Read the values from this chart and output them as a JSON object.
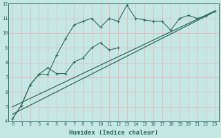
{
  "xlabel": "Humidex (Indice chaleur)",
  "x": [
    0,
    1,
    2,
    3,
    4,
    5,
    6,
    7,
    8,
    9,
    10,
    11,
    12,
    13,
    14,
    15,
    16,
    17,
    18,
    19,
    20,
    21,
    22,
    23
  ],
  "line1": [
    4.2,
    5.1,
    6.5,
    7.2,
    7.2,
    8.5,
    9.6,
    10.55,
    10.8,
    11.0,
    10.4,
    11.0,
    10.8,
    11.9,
    11.0,
    10.9,
    10.8,
    10.8,
    10.2,
    11.0,
    11.2,
    11.0,
    11.15,
    11.5
  ],
  "line2_x": [
    0,
    1,
    2,
    3,
    4,
    5,
    6,
    7,
    8,
    9,
    10,
    11,
    12
  ],
  "line2_y": [
    4.2,
    5.1,
    6.5,
    7.2,
    7.65,
    7.25,
    7.25,
    8.05,
    8.3,
    9.0,
    9.35,
    8.85,
    9.0
  ],
  "trend1_x": [
    0,
    23
  ],
  "trend1_y": [
    4.5,
    11.45
  ],
  "trend2_x": [
    0,
    23
  ],
  "trend2_y": [
    5.0,
    11.5
  ],
  "bg_color": "#c5e8e5",
  "grid_color_major": "#e8a0a0",
  "grid_color_minor": "#d0d8d8",
  "line_color": "#2a6b5e",
  "ylim": [
    4,
    12
  ],
  "xlim": [
    -0.5,
    23.5
  ],
  "yticks": [
    4,
    5,
    6,
    7,
    8,
    9,
    10,
    11,
    12
  ],
  "xticks": [
    0,
    1,
    2,
    3,
    4,
    5,
    6,
    7,
    8,
    9,
    10,
    11,
    12,
    13,
    14,
    15,
    16,
    17,
    18,
    19,
    20,
    21,
    22,
    23
  ],
  "tick_fontsize": 5.0,
  "xlabel_fontsize": 6.5,
  "tick_color": "#2a6b5e"
}
